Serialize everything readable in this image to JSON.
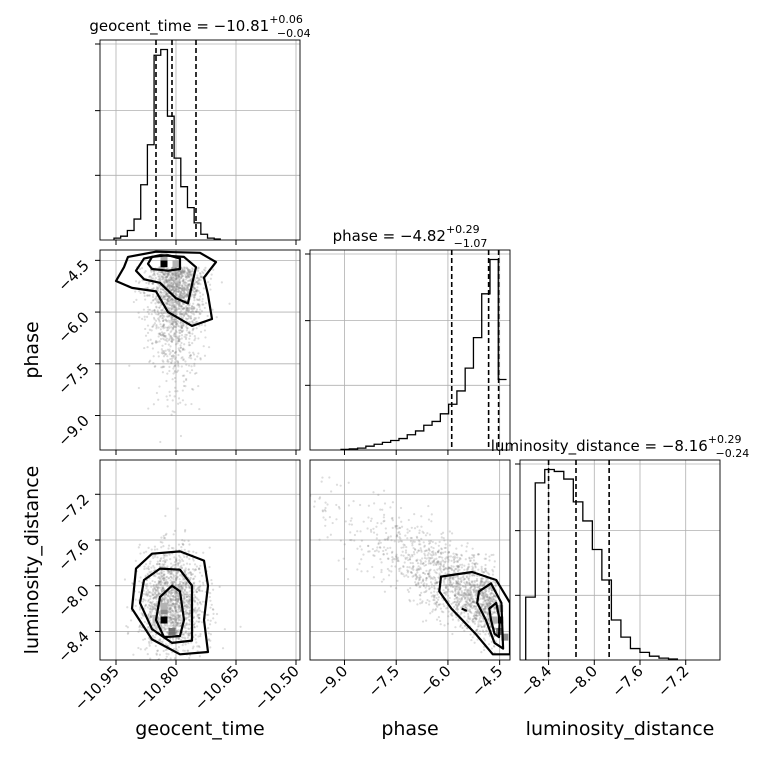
{
  "chart_data": {
    "type": "corner",
    "parameters": [
      "geocent_time",
      "phase",
      "luminosity_distance"
    ],
    "titles": [
      {
        "parameter": "geocent_time",
        "prefix": "geocent_time = ",
        "median": "−10.81",
        "plus": "+0.06",
        "minus": "−0.04"
      },
      {
        "parameter": "phase",
        "prefix": "phase = ",
        "median": "−4.82",
        "plus": "+0.29",
        "minus": "−1.07"
      },
      {
        "parameter": "luminosity_distance",
        "prefix": "luminosity_distance = ",
        "median": "−8.16",
        "plus": "+0.29",
        "minus": "−0.24"
      }
    ],
    "ranges": {
      "geocent_time": [
        -10.99,
        -10.49
      ],
      "phase": [
        -10.0,
        -4.2
      ],
      "luminosity_distance": [
        -8.65,
        -6.9
      ]
    },
    "ticks": {
      "geocent_time": [
        -10.95,
        -10.8,
        -10.65,
        -10.5
      ],
      "phase": [
        -9.0,
        -7.5,
        -6.0,
        -4.5
      ],
      "luminosity_distance": [
        -8.4,
        -8.0,
        -7.6,
        -7.2
      ]
    },
    "tick_labels": {
      "geocent_time": [
        "−10.95",
        "−10.80",
        "−10.65",
        "−10.50"
      ],
      "phase_x": [
        "−9.0",
        "−7.5",
        "−6.0",
        "−4.5"
      ],
      "phase_y": [
        "−4.5",
        "−6.0",
        "−7.5",
        "−9.0"
      ],
      "luminosity_distance_x": [
        "−8.4",
        "−8.0",
        "−7.6",
        "−7.2"
      ],
      "luminosity_distance_y": [
        "−7.2",
        "−7.6",
        "−8.0",
        "−8.4"
      ]
    },
    "axis_labels": {
      "x": [
        "geocent_time",
        "phase",
        "luminosity_distance"
      ],
      "y": [
        "phase",
        "luminosity_distance"
      ]
    },
    "quantiles": {
      "geocent_time": [
        -10.85,
        -10.81,
        -10.75
      ],
      "phase": [
        -5.89,
        -4.82,
        -4.53
      ],
      "luminosity_distance": [
        -8.4,
        -8.16,
        -7.87
      ]
    },
    "histograms": {
      "geocent_time": {
        "start": -10.955,
        "width": 0.0167,
        "counts": [
          0.01,
          0.02,
          0.05,
          0.11,
          0.29,
          0.5,
          0.97,
          1.0,
          0.65,
          0.43,
          0.28,
          0.17,
          0.09,
          0.03,
          0.01,
          0.005
        ]
      },
      "phase": {
        "start": -9.1,
        "width": 0.24,
        "counts": [
          0.003,
          0.006,
          0.01,
          0.02,
          0.03,
          0.04,
          0.05,
          0.06,
          0.08,
          0.1,
          0.13,
          0.15,
          0.19,
          0.24,
          0.31,
          0.43,
          0.59,
          0.82,
          1.0,
          0.37
        ]
      },
      "luminosity_distance": {
        "start": -8.6,
        "width": 0.0833,
        "counts": [
          0.33,
          0.93,
          1.0,
          0.99,
          0.95,
          0.83,
          0.73,
          0.58,
          0.42,
          0.21,
          0.12,
          0.06,
          0.04,
          0.02,
          0.01,
          0.005
        ]
      }
    },
    "contours": {
      "phase_vs_geocent_time": [
        [
          [
            -10.93,
            -4.7
          ],
          [
            -10.92,
            -4.4
          ],
          [
            -10.85,
            -4.25
          ],
          [
            -10.74,
            -4.28
          ],
          [
            -10.7,
            -4.55
          ],
          [
            -10.73,
            -5.0
          ],
          [
            -10.72,
            -5.5
          ],
          [
            -10.71,
            -6.2
          ],
          [
            -10.76,
            -6.4
          ],
          [
            -10.82,
            -6.0
          ],
          [
            -10.85,
            -5.4
          ],
          [
            -10.91,
            -5.3
          ],
          [
            -10.95,
            -5.1
          ]
        ],
        [
          [
            -10.9,
            -4.8
          ],
          [
            -10.88,
            -4.45
          ],
          [
            -10.84,
            -4.35
          ],
          [
            -10.78,
            -4.4
          ],
          [
            -10.75,
            -4.7
          ],
          [
            -10.76,
            -5.2
          ],
          [
            -10.77,
            -5.75
          ],
          [
            -10.8,
            -5.6
          ],
          [
            -10.84,
            -5.15
          ],
          [
            -10.88,
            -5.05
          ]
        ],
        [
          [
            -10.87,
            -4.6
          ],
          [
            -10.86,
            -4.4
          ],
          [
            -10.82,
            -4.35
          ],
          [
            -10.79,
            -4.45
          ],
          [
            -10.79,
            -4.75
          ],
          [
            -10.82,
            -4.8
          ],
          [
            -10.86,
            -4.75
          ]
        ]
      ],
      "luminosity_distance_vs_geocent_time": [
        [
          [
            -10.9,
            -7.85
          ],
          [
            -10.86,
            -7.72
          ],
          [
            -10.79,
            -7.7
          ],
          [
            -10.73,
            -7.78
          ],
          [
            -10.72,
            -8.0
          ],
          [
            -10.73,
            -8.3
          ],
          [
            -10.72,
            -8.58
          ],
          [
            -10.79,
            -8.6
          ],
          [
            -10.86,
            -8.47
          ],
          [
            -10.91,
            -8.2
          ]
        ],
        [
          [
            -10.88,
            -7.95
          ],
          [
            -10.84,
            -7.85
          ],
          [
            -10.79,
            -7.86
          ],
          [
            -10.76,
            -8.0
          ],
          [
            -10.76,
            -8.25
          ],
          [
            -10.76,
            -8.48
          ],
          [
            -10.81,
            -8.5
          ],
          [
            -10.86,
            -8.38
          ],
          [
            -10.89,
            -8.15
          ]
        ],
        [
          [
            -10.84,
            -8.1
          ],
          [
            -10.81,
            -8.0
          ],
          [
            -10.79,
            -8.05
          ],
          [
            -10.78,
            -8.3
          ],
          [
            -10.79,
            -8.44
          ],
          [
            -10.83,
            -8.45
          ],
          [
            -10.85,
            -8.3
          ]
        ]
      ],
      "luminosity_distance_vs_phase": [
        [
          [
            -6.2,
            -7.92
          ],
          [
            -5.3,
            -7.88
          ],
          [
            -4.6,
            -7.95
          ],
          [
            -4.2,
            -8.15
          ],
          [
            -4.2,
            -8.6
          ],
          [
            -4.7,
            -8.6
          ],
          [
            -5.2,
            -8.42
          ],
          [
            -5.9,
            -8.2
          ],
          [
            -6.25,
            -8.05
          ]
        ],
        [
          [
            -5.1,
            -8.05
          ],
          [
            -4.75,
            -7.98
          ],
          [
            -4.45,
            -8.15
          ],
          [
            -4.4,
            -8.55
          ],
          [
            -4.65,
            -8.5
          ],
          [
            -4.9,
            -8.3
          ],
          [
            -5.15,
            -8.15
          ]
        ],
        [
          [
            -4.8,
            -8.2
          ],
          [
            -4.6,
            -8.15
          ],
          [
            -4.5,
            -8.3
          ],
          [
            -4.52,
            -8.45
          ],
          [
            -4.65,
            -8.42
          ],
          [
            -4.75,
            -8.3
          ]
        ],
        [
          [
            -5.6,
            -8.2
          ],
          [
            -5.45,
            -8.22
          ]
        ]
      ]
    },
    "density_peaks": {
      "phase_vs_geocent_time": [
        [
          -10.83,
          -4.6,
          1.0
        ],
        [
          -10.83,
          -4.4,
          0.35
        ],
        [
          -10.8,
          -4.6,
          0.3
        ]
      ],
      "luminosity_distance_vs_geocent_time": [
        [
          -10.83,
          -8.3,
          1.0
        ],
        [
          -10.83,
          -8.22,
          0.45
        ],
        [
          -10.81,
          -8.4,
          0.55
        ],
        [
          -10.83,
          -8.18,
          0.3
        ],
        [
          -10.85,
          -8.3,
          0.25
        ]
      ],
      "luminosity_distance_vs_phase": [
        [
          -4.5,
          -8.3,
          1.0
        ],
        [
          -4.5,
          -8.4,
          0.55
        ],
        [
          -4.65,
          -8.3,
          0.3
        ],
        [
          -4.5,
          -8.2,
          0.35
        ],
        [
          -4.35,
          -8.45,
          0.45
        ]
      ]
    },
    "grid": true,
    "scatter_color": "#808080",
    "line_color": "#000000"
  }
}
